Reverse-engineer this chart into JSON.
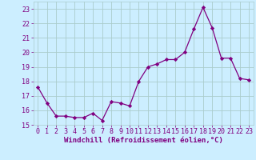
{
  "x": [
    0,
    1,
    2,
    3,
    4,
    5,
    6,
    7,
    8,
    9,
    10,
    11,
    12,
    13,
    14,
    15,
    16,
    17,
    18,
    19,
    20,
    21,
    22,
    23
  ],
  "y": [
    17.6,
    16.5,
    15.6,
    15.6,
    15.5,
    15.5,
    15.8,
    15.3,
    16.6,
    16.5,
    16.3,
    18.0,
    19.0,
    19.2,
    19.5,
    19.5,
    20.0,
    21.6,
    23.1,
    21.7,
    19.6,
    19.6,
    18.2,
    18.1
  ],
  "line_color": "#800080",
  "marker": "D",
  "marker_size": 2.2,
  "bg_color": "#cceeff",
  "grid_color": "#aacccc",
  "xlabel": "Windchill (Refroidissement éolien,°C)",
  "xlim": [
    -0.5,
    23.5
  ],
  "ylim": [
    15,
    23.5
  ],
  "yticks": [
    15,
    16,
    17,
    18,
    19,
    20,
    21,
    22,
    23
  ],
  "xticks": [
    0,
    1,
    2,
    3,
    4,
    5,
    6,
    7,
    8,
    9,
    10,
    11,
    12,
    13,
    14,
    15,
    16,
    17,
    18,
    19,
    20,
    21,
    22,
    23
  ],
  "xlabel_fontsize": 6.5,
  "tick_fontsize": 6.0,
  "tick_color": "#800080",
  "axis_color": "#800080"
}
